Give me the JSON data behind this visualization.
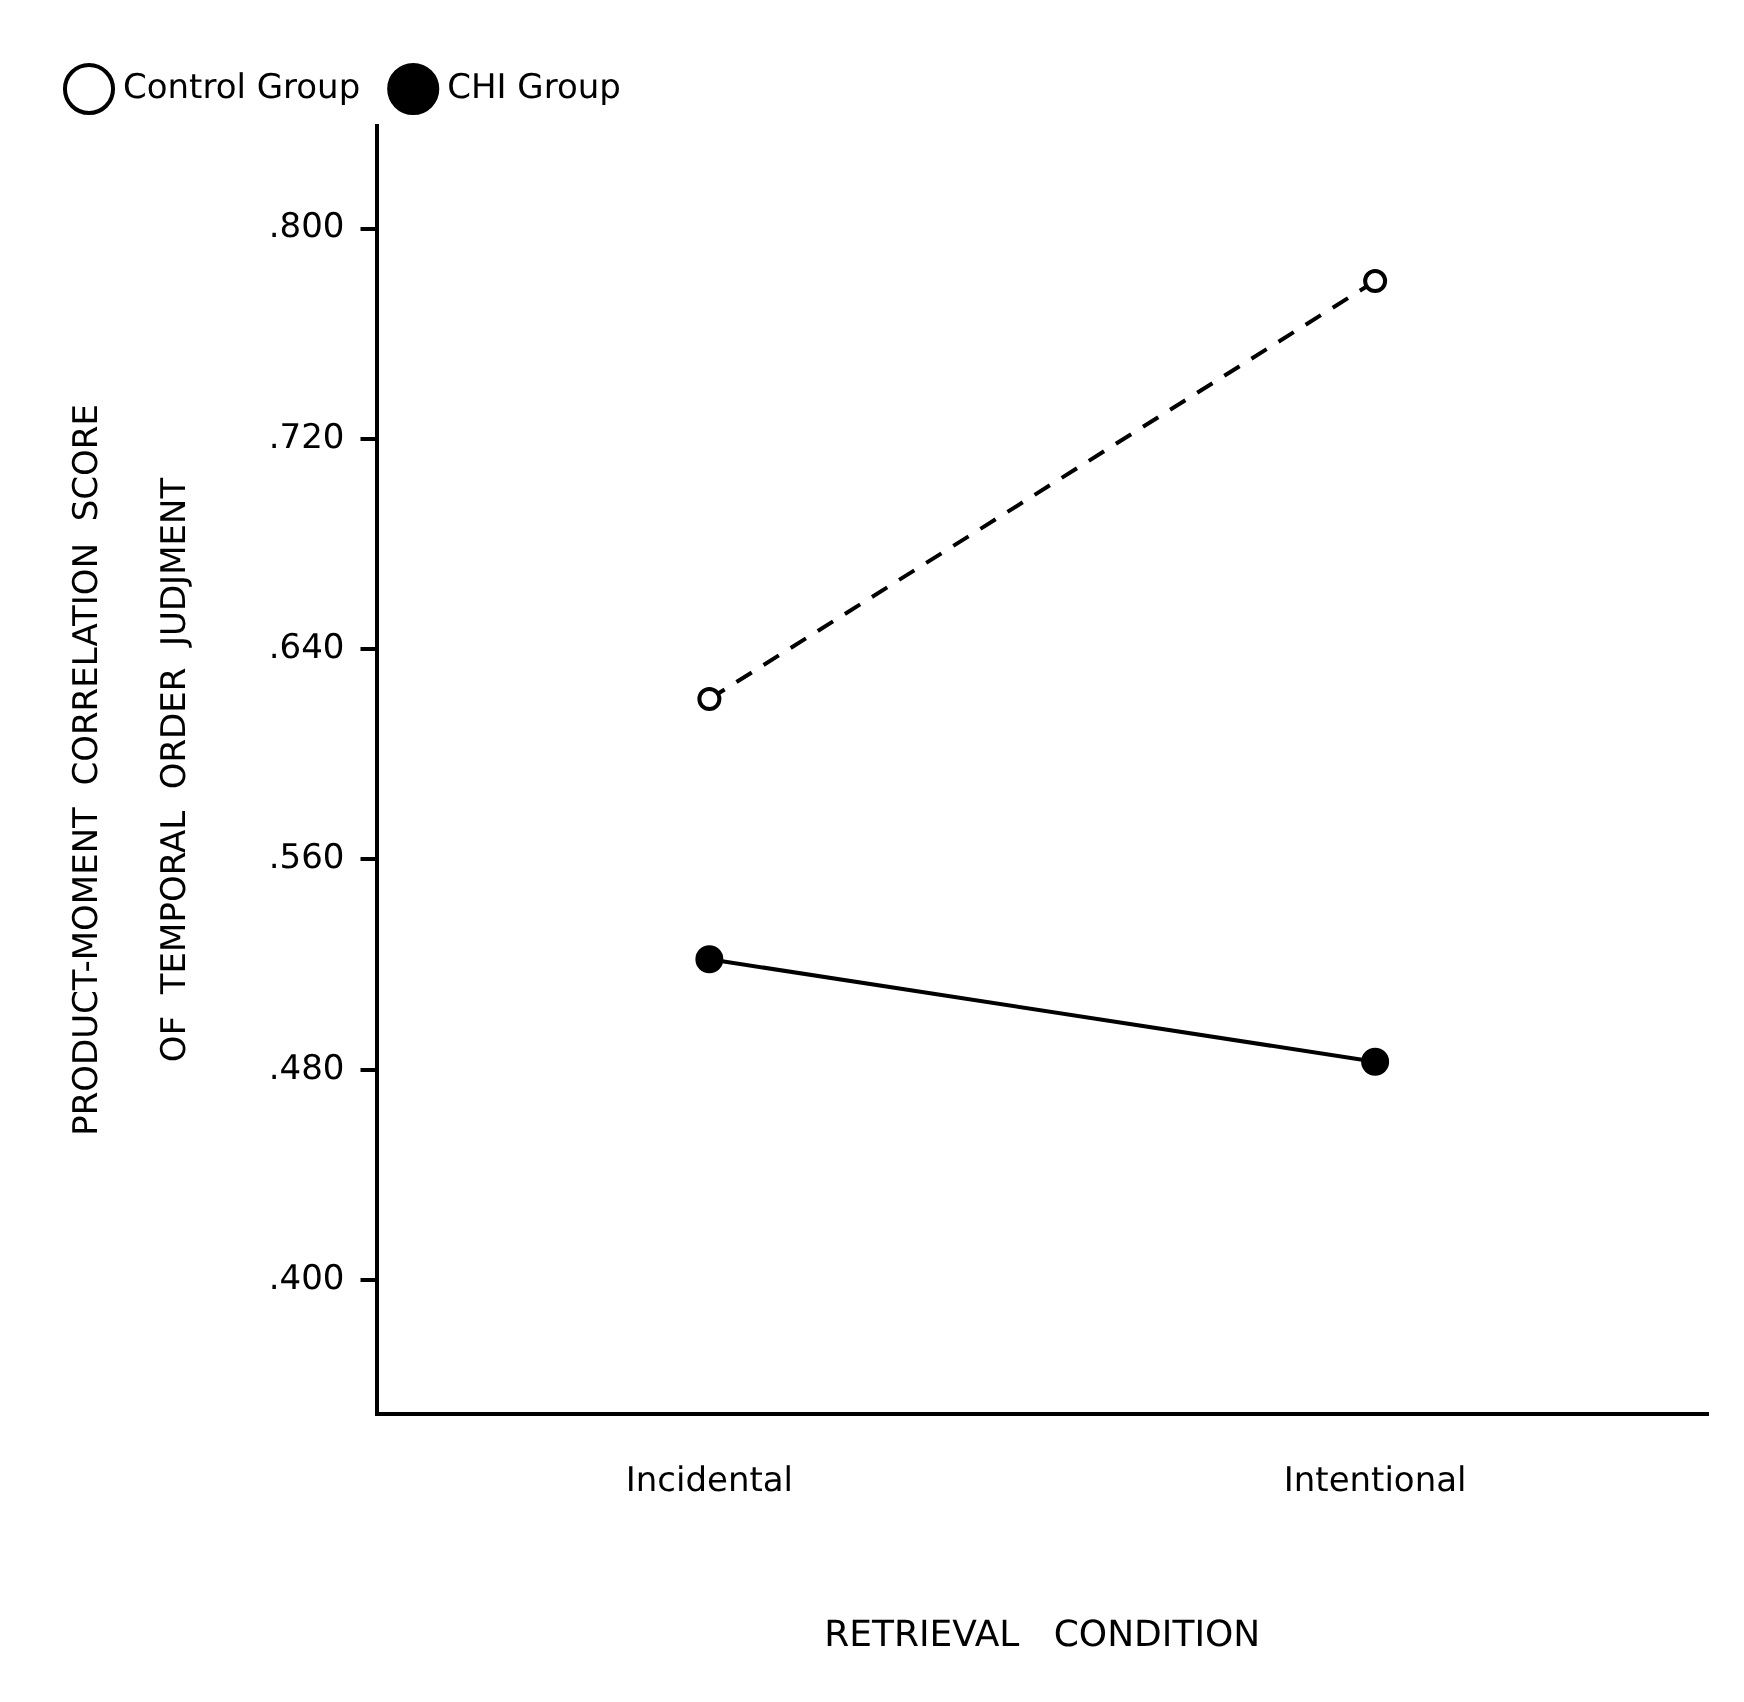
{
  "chart_data": {
    "type": "line",
    "xlabel": "RETRIEVAL   CONDITION",
    "ylabel": "PRODUCT-MOMENT  CORRELATION  SCORE\nOF  TEMPORAL  ORDER  JUDJMENT",
    "categories": [
      "Incidental",
      "Intentional"
    ],
    "series": [
      {
        "name": "Control Group",
        "color": "#000000",
        "values": [
          0.621,
          0.78
        ],
        "marker": "circle",
        "line_style": "dashed"
      },
      {
        "name": "CHI Group",
        "color": "#000000",
        "values": [
          0.522,
          0.483
        ],
        "marker": "circle",
        "line_style": "solid"
      }
    ],
    "ylim": [
      0.349,
      0.839
    ],
    "yticks": [
      {
        "value": 0.4,
        "label": ".400"
      },
      {
        "value": 0.48,
        "label": ".480"
      },
      {
        "value": 0.56,
        "label": ".560"
      },
      {
        "value": 0.64,
        "label": ".640"
      },
      {
        "value": 0.72,
        "label": ".720"
      },
      {
        "value": 0.8,
        "label": ".800"
      }
    ],
    "grid": false,
    "legend": "top left"
  }
}
